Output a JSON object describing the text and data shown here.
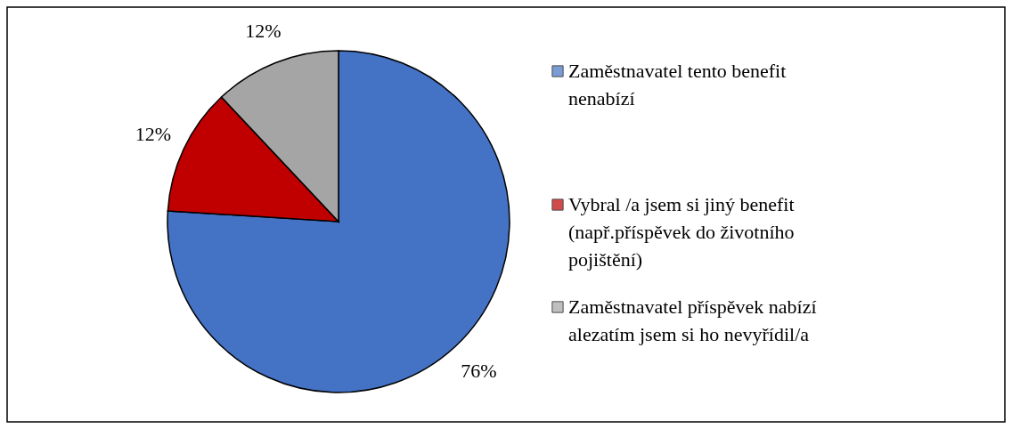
{
  "chart_data": {
    "type": "pie",
    "categories": [
      "Zaměstnavatel tento benefit nenabízí",
      "Vybral /a jsem si jiný benefit (např.příspěvek do životního pojištění)",
      "Zaměstnavatel příspěvek nabízí alezatím jsem si ho nevyřídil/a"
    ],
    "values": [
      76,
      12,
      12
    ],
    "colors": [
      "#4472c4",
      "#c00000",
      "#a5a5a5"
    ],
    "value_labels": [
      "76%",
      "12%",
      "12%"
    ],
    "legend": "right"
  }
}
